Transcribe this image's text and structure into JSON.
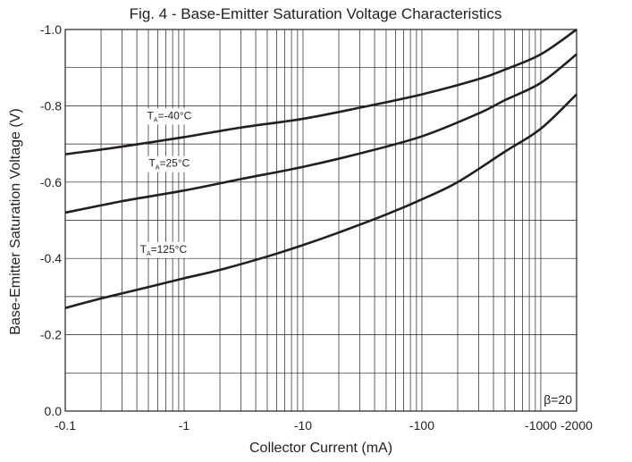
{
  "chart_data": {
    "type": "line",
    "title": "Fig. 4 - Base-Emitter Saturation Voltage Characteristics",
    "xlabel": "Collector Current (mA)",
    "ylabel": "Base-Emitter Saturation Voltage (V)",
    "x_scale": "log",
    "xlim": [
      -0.1,
      -2000
    ],
    "ylim": [
      0.0,
      -1.0
    ],
    "x_ticks": [
      {
        "value": -0.1,
        "label": "-0.1"
      },
      {
        "value": -1,
        "label": "-1"
      },
      {
        "value": -10,
        "label": "-10"
      },
      {
        "value": -100,
        "label": "-100"
      },
      {
        "value": -1000,
        "label": "-1000"
      },
      {
        "value": -2000,
        "label": "-2000"
      }
    ],
    "y_ticks": [
      {
        "value": 0.0,
        "label": "0.0"
      },
      {
        "value": -0.2,
        "label": "-0.2"
      },
      {
        "value": -0.4,
        "label": "-0.4"
      },
      {
        "value": -0.6,
        "label": "-0.6"
      },
      {
        "value": -0.8,
        "label": "-0.8"
      },
      {
        "value": -1.0,
        "label": "-1.0"
      }
    ],
    "grid": true,
    "annotation": "β=20",
    "series": [
      {
        "label_base": "T",
        "label_sub": "A",
        "label_rest": "=-40°C",
        "label_at": [
          -0.75,
          -0.765
        ],
        "x": [
          -0.1,
          -0.3,
          -1,
          -3,
          -10,
          -30,
          -100,
          -300,
          -500,
          -1000,
          -2000
        ],
        "y": [
          -0.673,
          -0.693,
          -0.718,
          -0.743,
          -0.766,
          -0.795,
          -0.83,
          -0.87,
          -0.895,
          -0.935,
          -1.0
        ]
      },
      {
        "label_base": "T",
        "label_sub": "A",
        "label_rest": "=25°C",
        "label_at": [
          -0.75,
          -0.64
        ],
        "x": [
          -0.1,
          -0.3,
          -1,
          -3,
          -10,
          -30,
          -100,
          -300,
          -500,
          -1000,
          -2000
        ],
        "y": [
          -0.52,
          -0.55,
          -0.578,
          -0.608,
          -0.64,
          -0.675,
          -0.72,
          -0.78,
          -0.815,
          -0.86,
          -0.935
        ]
      },
      {
        "label_base": "T",
        "label_sub": "A",
        "label_rest": "=125°C",
        "label_at": [
          -0.67,
          -0.415
        ],
        "x": [
          -0.1,
          -0.2,
          -0.5,
          -1,
          -2,
          -5,
          -10,
          -20,
          -50,
          -100,
          -200,
          -500,
          -1000,
          -2000
        ],
        "y": [
          -0.27,
          -0.295,
          -0.325,
          -0.348,
          -0.37,
          -0.405,
          -0.435,
          -0.468,
          -0.515,
          -0.555,
          -0.6,
          -0.68,
          -0.74,
          -0.83
        ]
      }
    ]
  }
}
